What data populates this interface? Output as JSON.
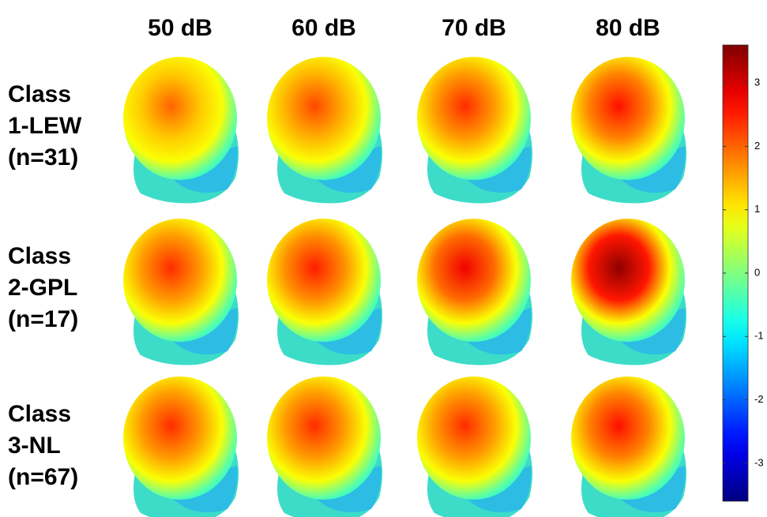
{
  "columns": [
    "50 dB",
    "60 dB",
    "70 dB",
    "80 dB"
  ],
  "rows": [
    {
      "label": [
        "Class",
        "1-LEW",
        "(n=31)"
      ],
      "peaks": [
        2,
        2.2,
        2.4,
        2.6
      ]
    },
    {
      "label": [
        "Class",
        "2-GPL",
        "(n=17)"
      ],
      "peaks": [
        2.4,
        2.5,
        2.8,
        3.5
      ]
    },
    {
      "label": [
        "Class",
        "3-NL",
        "(n=67)"
      ],
      "peaks": [
        2.4,
        2.4,
        2.4,
        2.6
      ]
    }
  ],
  "colorbar": {
    "lim": [
      -3.6,
      3.6
    ],
    "ticks": [
      3,
      2,
      1,
      0,
      -1,
      -2,
      -3
    ]
  }
}
